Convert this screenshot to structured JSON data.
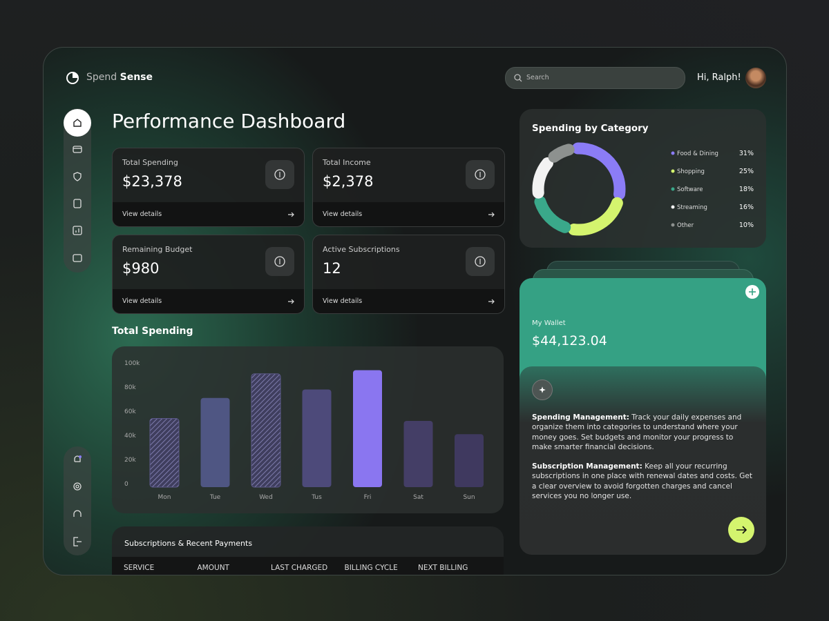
{
  "header": {
    "brand_light": "Spend",
    "brand_bold": "Sense",
    "search_placeholder": "Search",
    "greeting": "Hi, Ralph!"
  },
  "page_title": "Performance Dashboard",
  "cards": [
    {
      "label": "Total Spending",
      "value": "$23,378",
      "link": "View details"
    },
    {
      "label": "Total Income",
      "value": "$2,378",
      "link": "View details"
    },
    {
      "label": "Remaining Budget",
      "value": "$980",
      "link": "View details"
    },
    {
      "label": "Active Subscriptions",
      "value": "12",
      "link": "View details"
    }
  ],
  "spending_chart": {
    "type": "bar",
    "title": "Total Spending",
    "categories": [
      "Mon",
      "Tue",
      "Wed",
      "Tus",
      "Fri",
      "Sat",
      "Sun"
    ],
    "values": [
      54000,
      71000,
      91000,
      78000,
      94000,
      52000,
      41000
    ],
    "colors": [
      "#5d5a8c",
      "#4f5683",
      "#5d5a8c",
      "#4d4a7a",
      "#8a76f0",
      "#443e66",
      "#3f395f"
    ],
    "hatched": [
      true,
      false,
      true,
      false,
      false,
      false,
      false
    ],
    "ylim": [
      0,
      100000
    ],
    "yticks": [
      0,
      {
        "value": 20000,
        "label": "20k"
      },
      {
        "value": 40000,
        "label": "40k"
      },
      {
        "value": 60000,
        "label": "60k"
      },
      {
        "value": 80000,
        "label": "80k"
      },
      {
        "value": 100000,
        "label": "100k"
      }
    ]
  },
  "category_chart": {
    "type": "pie",
    "title": "Spending by Category",
    "categories": [
      "Food & Dining",
      "Shopping",
      "Software",
      "Streaming",
      "Other"
    ],
    "values": [
      31,
      25,
      18,
      16,
      10
    ],
    "value_labels": [
      "31%",
      "25%",
      "18%",
      "16%",
      "10%"
    ],
    "colors": [
      "#8b7cf6",
      "#d4f46e",
      "#3aa88a",
      "#f2f2f2",
      "#8d918f"
    ]
  },
  "wallet": {
    "label": "My Wallet",
    "amount": "$44,123.04"
  },
  "info": [
    {
      "heading": "Spending Management:",
      "text": "Track your daily expenses and organize them into categories to understand where your money goes. Set budgets and monitor your progress to make smarter financial decisions."
    },
    {
      "heading": "Subscription Management:",
      "text": "Keep all your recurring subscriptions in one place with renewal dates and costs. Get a clear overview to avoid forgotten charges and cancel services you no longer use."
    }
  ],
  "table": {
    "title": "Subscriptions & Recent Payments",
    "columns": [
      "SERVICE",
      "AMOUNT",
      "LAST CHARGED",
      "BILLING CYCLE",
      "NEXT BILLING"
    ]
  }
}
